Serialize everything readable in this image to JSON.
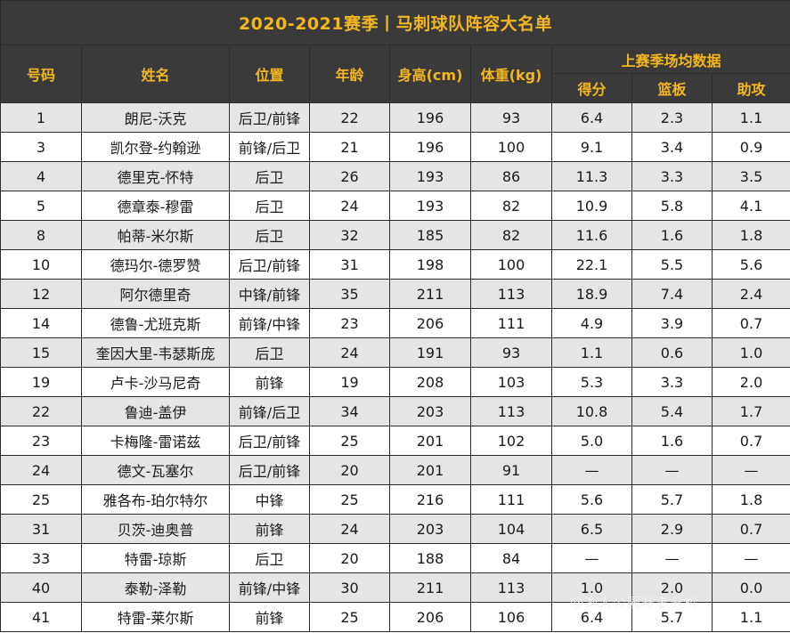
{
  "title": "2020-2021赛季丨马刺球队阵容大名单",
  "headers": {
    "number": "号码",
    "name": "姓名",
    "position": "位置",
    "age": "年龄",
    "height": "身高(cm)",
    "weight": "体重(kg)",
    "last_season": "上赛季场均数据",
    "points": "得分",
    "rebounds": "篮板",
    "assists": "助攻"
  },
  "rows": [
    [
      "1",
      "朗尼-沃克",
      "后卫/前锋",
      "22",
      "196",
      "93",
      "6.4",
      "2.3",
      "1.1"
    ],
    [
      "3",
      "凯尔登-约翰逊",
      "前锋/后卫",
      "21",
      "196",
      "100",
      "9.1",
      "3.4",
      "0.9"
    ],
    [
      "4",
      "德里克-怀特",
      "后卫",
      "26",
      "193",
      "86",
      "11.3",
      "3.3",
      "3.5"
    ],
    [
      "5",
      "德章泰-穆雷",
      "后卫",
      "24",
      "193",
      "82",
      "10.9",
      "5.8",
      "4.1"
    ],
    [
      "8",
      "帕蒂-米尔斯",
      "后卫",
      "32",
      "185",
      "82",
      "11.6",
      "1.6",
      "1.8"
    ],
    [
      "10",
      "德玛尔-德罗赞",
      "后卫/前锋",
      "31",
      "198",
      "100",
      "22.1",
      "5.5",
      "5.6"
    ],
    [
      "12",
      "阿尔德里奇",
      "中锋/前锋",
      "35",
      "211",
      "113",
      "18.9",
      "7.4",
      "2.4"
    ],
    [
      "14",
      "德鲁-尤班克斯",
      "前锋/中锋",
      "23",
      "206",
      "111",
      "4.9",
      "3.9",
      "0.7"
    ],
    [
      "15",
      "奎因大里-韦瑟斯庞",
      "后卫",
      "24",
      "191",
      "93",
      "1.1",
      "0.6",
      "1.0"
    ],
    [
      "19",
      "卢卡-沙马尼奇",
      "前锋",
      "19",
      "208",
      "103",
      "5.3",
      "3.3",
      "2.0"
    ],
    [
      "22",
      "鲁迪-盖伊",
      "前锋/后卫",
      "34",
      "203",
      "113",
      "10.8",
      "5.4",
      "1.7"
    ],
    [
      "23",
      "卡梅隆-雷诺兹",
      "后卫/前锋",
      "25",
      "201",
      "102",
      "5.0",
      "1.6",
      "0.7"
    ],
    [
      "24",
      "德文-瓦塞尔",
      "后卫/前锋",
      "20",
      "201",
      "91",
      "—",
      "—",
      "—"
    ],
    [
      "25",
      "雅各布-珀尔特尔",
      "中锋",
      "25",
      "216",
      "111",
      "5.6",
      "5.7",
      "1.8"
    ],
    [
      "31",
      "贝茨-迪奥普",
      "前锋",
      "24",
      "203",
      "104",
      "6.5",
      "2.9",
      "0.7"
    ],
    [
      "33",
      "特雷-琼斯",
      "后卫",
      "20",
      "188",
      "84",
      "—",
      "—",
      "—"
    ],
    [
      "40",
      "泰勒-泽勒",
      "前锋/中锋",
      "30",
      "211",
      "113",
      "1.0",
      "2.0",
      "0.0"
    ],
    [
      "41",
      "特雷-莱尔斯",
      "前锋",
      "25",
      "206",
      "106",
      "6.4",
      "5.7",
      "1.1"
    ]
  ],
  "watermark": "@湖人公园赛事分析"
}
